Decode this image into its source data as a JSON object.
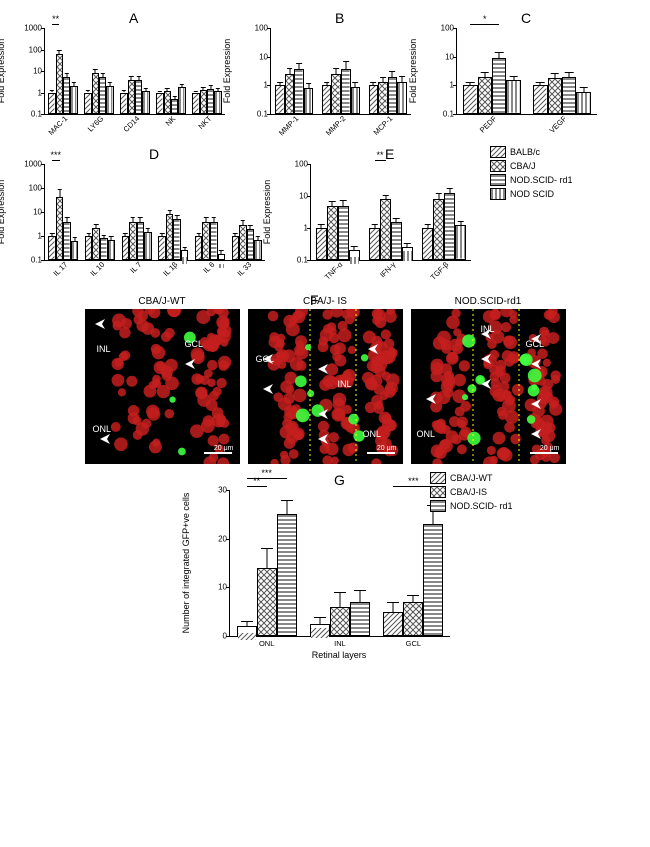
{
  "patterns": {
    "BALB/c": "url(#p-diag)",
    "CBA/J": "url(#p-check)",
    "NOD.SCID- rd1": "url(#p-hstripe)",
    "NOD SCID": "url(#p-vstripe)"
  },
  "patternsG": {
    "CBA/J-WT": "url(#p-diag)",
    "CBA/J-IS": "url(#p-check)",
    "NOD.SCID- rd1": "url(#p-hstripe)"
  },
  "legend_main": [
    "BALB/c",
    "CBA/J",
    "NOD.SCID- rd1",
    "NOD SCID"
  ],
  "legend_G": [
    "CBA/J-WT",
    "CBA/J-IS",
    "NOD.SCID- rd1"
  ],
  "panels": {
    "A": {
      "label": "A",
      "ylabel": "Fold Expression",
      "ylim": [
        0.1,
        1000
      ],
      "yticks": [
        0.1,
        1,
        10,
        100,
        1000
      ],
      "categories": [
        "MAC-1",
        "LY6G",
        "CD14",
        "NK",
        "NKT"
      ],
      "series": [
        "BALB/c",
        "CBA/J",
        "NOD.SCID- rd1",
        "NOD SCID"
      ],
      "data": [
        [
          1,
          60,
          5,
          2
        ],
        [
          1,
          8,
          5,
          2
        ],
        [
          1,
          4,
          4,
          1.2
        ],
        [
          1,
          1.2,
          0.5,
          1.8
        ],
        [
          1,
          1.3,
          1.5,
          1.2
        ]
      ],
      "err": [
        [
          0.3,
          40,
          3,
          1
        ],
        [
          0.3,
          5,
          3,
          1
        ],
        [
          0.3,
          2,
          2,
          0.5
        ],
        [
          0.2,
          0.4,
          0.2,
          0.8
        ],
        [
          0.2,
          0.5,
          0.8,
          0.5
        ]
      ],
      "sig": [
        {
          "group": 0,
          "from": 0,
          "to": 1,
          "text": "**"
        }
      ]
    },
    "B": {
      "label": "B",
      "ylabel": "Fold Expression",
      "ylim": [
        0.1,
        100
      ],
      "yticks": [
        0.1,
        1,
        10,
        100
      ],
      "categories": [
        "MMP-1",
        "MMP-2",
        "MCP-1"
      ],
      "series": [
        "BALB/c",
        "CBA/J",
        "NOD.SCID- rd1",
        "NOD SCID"
      ],
      "data": [
        [
          1,
          2.4,
          3.8,
          0.8
        ],
        [
          1,
          2.4,
          3.8,
          0.9
        ],
        [
          1,
          1.3,
          2.0,
          1.3
        ]
      ],
      "err": [
        [
          0.3,
          1.5,
          2,
          0.4
        ],
        [
          0.3,
          1.5,
          3,
          0.4
        ],
        [
          0.3,
          0.6,
          1.2,
          0.8
        ]
      ]
    },
    "C": {
      "label": "C",
      "ylabel": "Fold Expression",
      "ylim": [
        0.1,
        100
      ],
      "yticks": [
        0.1,
        1,
        10,
        100
      ],
      "categories": [
        "PEDF",
        "VEGF"
      ],
      "series": [
        "BALB/c",
        "CBA/J",
        "NOD.SCID- rd1",
        "NOD SCID"
      ],
      "data": [
        [
          1,
          2,
          9,
          1.5
        ],
        [
          1,
          1.8,
          2,
          0.6
        ]
      ],
      "err": [
        [
          0.3,
          1,
          6,
          0.6
        ],
        [
          0.3,
          0.8,
          1,
          0.3
        ]
      ],
      "sig": [
        {
          "group": 0,
          "from": 0,
          "to": 2,
          "text": "*"
        }
      ]
    },
    "D": {
      "label": "D",
      "ylabel": "Fold Expression",
      "ylim": [
        0.1,
        1000
      ],
      "yticks": [
        0.1,
        1,
        10,
        100,
        1000
      ],
      "categories": [
        "IL 17",
        "IL 10",
        "IL 7",
        "IL 1β",
        "IL 6",
        "IL 33"
      ],
      "series": [
        "BALB/c",
        "CBA/J",
        "NOD.SCID- rd1",
        "NOD SCID"
      ],
      "data": [
        [
          1,
          42,
          4,
          0.6
        ],
        [
          1,
          2.2,
          0.8,
          0.7
        ],
        [
          1,
          4,
          4,
          1.5
        ],
        [
          1,
          8,
          5,
          0.25
        ],
        [
          1,
          4,
          4,
          0.18
        ],
        [
          1,
          3,
          2,
          0.7
        ]
      ],
      "err": [
        [
          0.3,
          50,
          2,
          0.3
        ],
        [
          0.3,
          1,
          0.3,
          0.3
        ],
        [
          0.3,
          2,
          2,
          0.7
        ],
        [
          0.3,
          4,
          2.5,
          0.1
        ],
        [
          0.3,
          2,
          2,
          0.08
        ],
        [
          0.3,
          1.5,
          1,
          0.3
        ]
      ],
      "sig": [
        {
          "group": 0,
          "from": 0,
          "to": 1,
          "text": "***"
        }
      ]
    },
    "E": {
      "label": "E",
      "ylabel": "Fold Expression",
      "ylim": [
        0.1,
        100
      ],
      "yticks": [
        0.1,
        1,
        10,
        100
      ],
      "categories": [
        "TNF-α",
        "IFN-γ",
        "TGF-β"
      ],
      "series": [
        "BALB/c",
        "CBA/J",
        "NOD.SCID- rd1",
        "NOD SCID"
      ],
      "data": [
        [
          1,
          5,
          5,
          0.2
        ],
        [
          1,
          8,
          1.5,
          0.25
        ],
        [
          1,
          8,
          12,
          1.2
        ]
      ],
      "err": [
        [
          0.3,
          2,
          2.5,
          0.08
        ],
        [
          0.3,
          3,
          0.6,
          0.1
        ],
        [
          0.3,
          4,
          6,
          0.5
        ]
      ],
      "sig": [
        {
          "group": 1,
          "from": 0,
          "to": 1,
          "text": "**"
        }
      ]
    },
    "G": {
      "label": "G",
      "ylabel": "Number of integrated GFP+ve cells",
      "xlabel": "Retinal layers",
      "ylim": [
        0,
        30
      ],
      "yticks": [
        0,
        10,
        20,
        30
      ],
      "categories": [
        "ONL",
        "INL",
        "GCL"
      ],
      "series": [
        "CBA/J-WT",
        "CBA/J-IS",
        "NOD.SCID- rd1"
      ],
      "data": [
        [
          2,
          14,
          25
        ],
        [
          2.5,
          6,
          7
        ],
        [
          5,
          7,
          23
        ]
      ],
      "err": [
        [
          1,
          4,
          3
        ],
        [
          1.5,
          3,
          2.5
        ],
        [
          2,
          1.5,
          4
        ]
      ],
      "sig": [
        {
          "group": 0,
          "from": 0,
          "to": 1,
          "text": "**"
        },
        {
          "group": 0,
          "from": 0,
          "to": 2,
          "text": "***",
          "level": 1
        },
        {
          "group": 2,
          "from": 0,
          "to": 2,
          "text": "***"
        }
      ]
    }
  },
  "microscopy": {
    "label": "F",
    "titles": [
      "CBA/J-WT",
      "CBA/J- IS",
      "NOD.SCID-rd1"
    ],
    "layer_labels": [
      "INL",
      "GCL",
      "ONL"
    ],
    "scalebar": "20 μm"
  }
}
